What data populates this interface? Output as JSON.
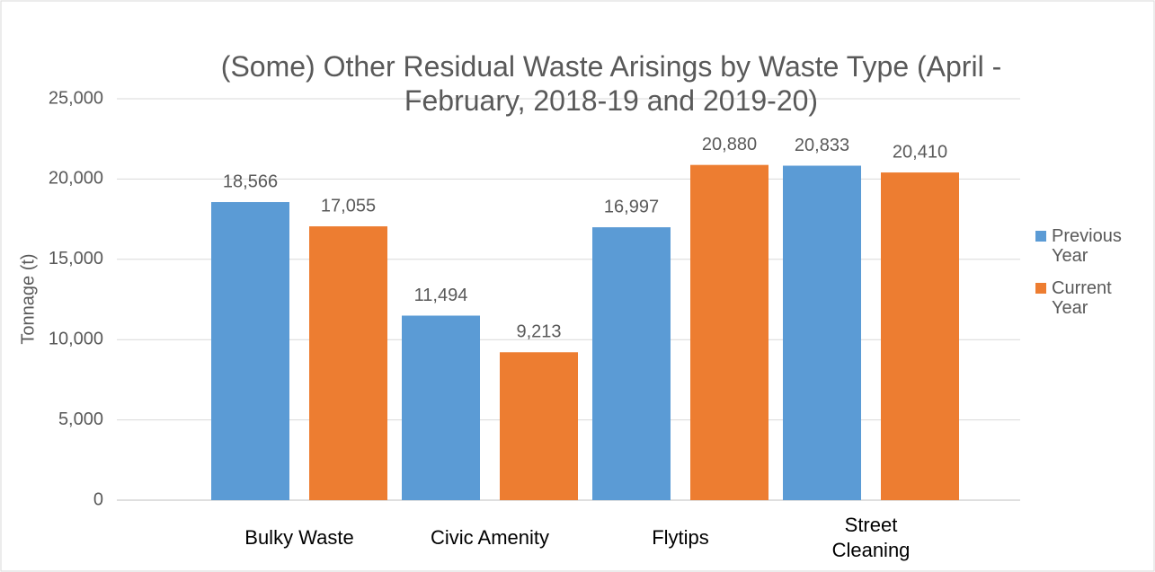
{
  "chart_data": {
    "type": "bar",
    "title": "(Some) Other Residual Waste Arisings by Waste Type (April - February, 2018-19 and 2019-20)",
    "y_label": "Tonnage (t)",
    "categories": [
      "Bulky Waste",
      "Civic Amenity",
      "Flytips",
      "Street Cleaning"
    ],
    "series": [
      {
        "name": "Previous Year",
        "color": "#5b9bd5",
        "values": [
          18566,
          11494,
          16997,
          20833
        ],
        "value_labels": [
          "18,566",
          "11,494",
          "16,997",
          "20,833"
        ]
      },
      {
        "name": "Current Year",
        "color": "#ed7d31",
        "values": [
          17055,
          9213,
          20880,
          20410
        ],
        "value_labels": [
          "17,055",
          "9,213",
          "20,880",
          "20,410"
        ]
      }
    ],
    "ylim": [
      0,
      25000
    ],
    "yticks": [
      0,
      {
        "value": 5000,
        "label": "5,000"
      },
      {
        "value": 10000,
        "label": "10,000"
      },
      {
        "value": 15000,
        "label": "15,000"
      },
      {
        "value": 20000,
        "label": "20,000"
      },
      {
        "value": 25000,
        "label": "25,000"
      }
    ],
    "grid": true,
    "legend": "right"
  }
}
